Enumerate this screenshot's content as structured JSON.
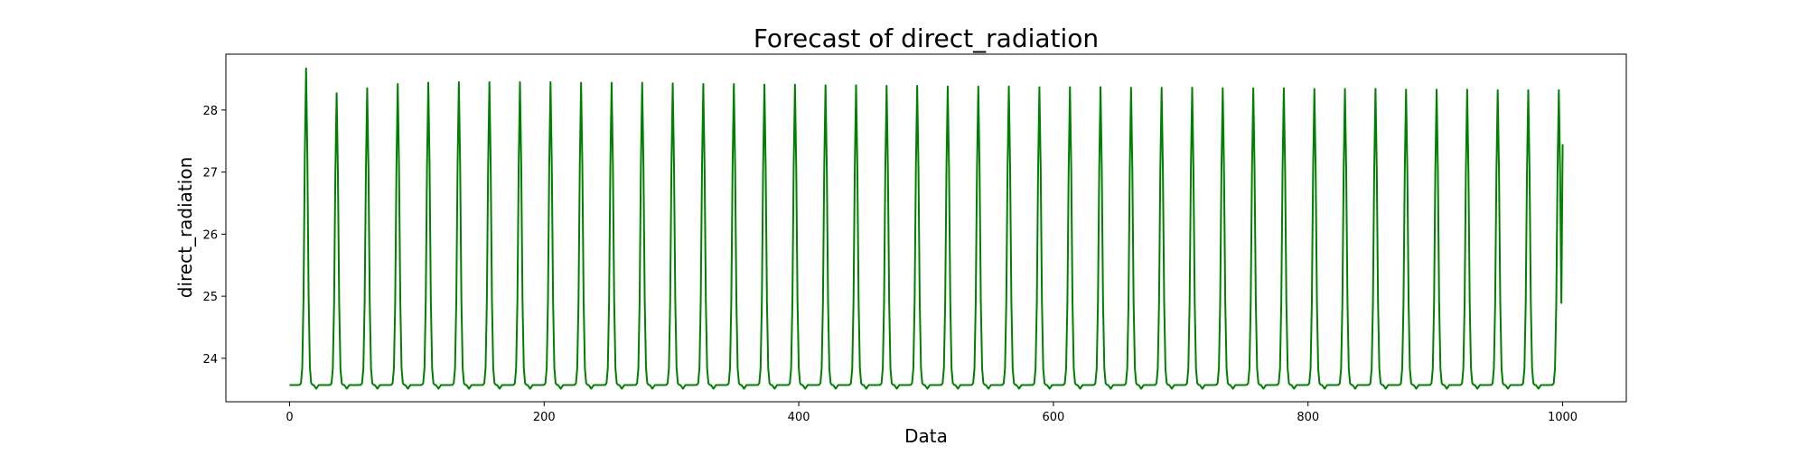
{
  "chart_data": {
    "type": "line",
    "title": "Forecast of direct_radiation",
    "xlabel": "Data",
    "ylabel": "direct_radiation",
    "xlim": [
      -50,
      1050
    ],
    "ylim": [
      23.3,
      28.9
    ],
    "x_ticks": [
      0,
      200,
      400,
      600,
      800,
      1000
    ],
    "y_ticks": [
      24,
      25,
      26,
      27,
      28
    ],
    "grid": false,
    "legend": "none",
    "line_color": "#008000",
    "period": 24,
    "first_peak_x": 13,
    "baseline": 23.57,
    "trough_min": 23.51,
    "last_point": {
      "x": 1000,
      "y": 27.45
    },
    "series": [
      {
        "x": [
          0,
          1,
          2,
          3,
          4,
          5,
          6,
          7,
          8,
          9,
          10,
          11,
          12,
          13,
          14,
          15,
          16,
          17,
          18,
          19,
          20,
          21,
          22,
          23,
          24
        ],
        "peak_values": [
          28.67,
          28.27,
          28.35,
          28.42,
          28.44,
          28.45,
          28.45,
          28.45,
          28.45,
          28.44,
          28.44,
          28.44,
          28.43,
          28.42,
          28.42,
          28.41,
          28.41,
          28.4,
          28.4,
          28.39,
          28.39,
          28.38,
          28.38,
          28.38,
          28.37,
          28.37,
          28.37,
          28.36,
          28.36,
          28.36,
          28.35,
          28.35,
          28.35,
          28.34,
          28.34,
          28.34,
          28.33,
          28.33,
          28.33,
          28.32,
          28.32,
          28.32
        ]
      }
    ]
  }
}
